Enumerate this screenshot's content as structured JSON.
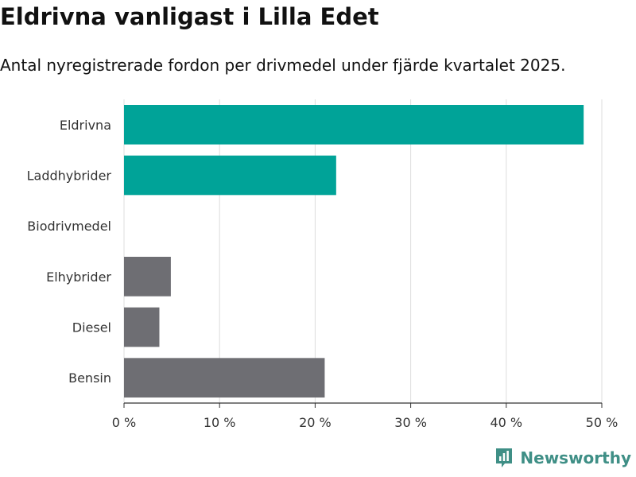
{
  "header": {
    "title": "Eldrivna vanligast i Lilla Edet",
    "subtitle": "Antal nyregistrerade fordon per drivmedel under fjärde kvartalet 2025."
  },
  "brand": {
    "name": "Newsworthy",
    "icon": "newsworthy-logo-icon"
  },
  "colors": {
    "highlight": "#00a398",
    "other": "#6e6e73",
    "grid": "#dddddd"
  },
  "chart_data": {
    "type": "bar",
    "orientation": "horizontal",
    "title": "Eldrivna vanligast i Lilla Edet",
    "subtitle": "Antal nyregistrerade fordon per drivmedel under fjärde kvartalet 2025.",
    "xlabel": "",
    "ylabel": "",
    "categories": [
      "Eldrivna",
      "Laddhybrider",
      "Biodrivmedel",
      "Elhybrider",
      "Diesel",
      "Bensin"
    ],
    "values": [
      48.1,
      22.2,
      0,
      4.9,
      3.7,
      21.0
    ],
    "highlighted": [
      true,
      true,
      false,
      false,
      false,
      false
    ],
    "xlim": [
      0,
      50
    ],
    "ticks": [
      0,
      10,
      20,
      30,
      40,
      50
    ],
    "tick_labels": [
      "0 %",
      "10 %",
      "20 %",
      "30 %",
      "40 %",
      "50 %"
    ],
    "grid": true
  }
}
